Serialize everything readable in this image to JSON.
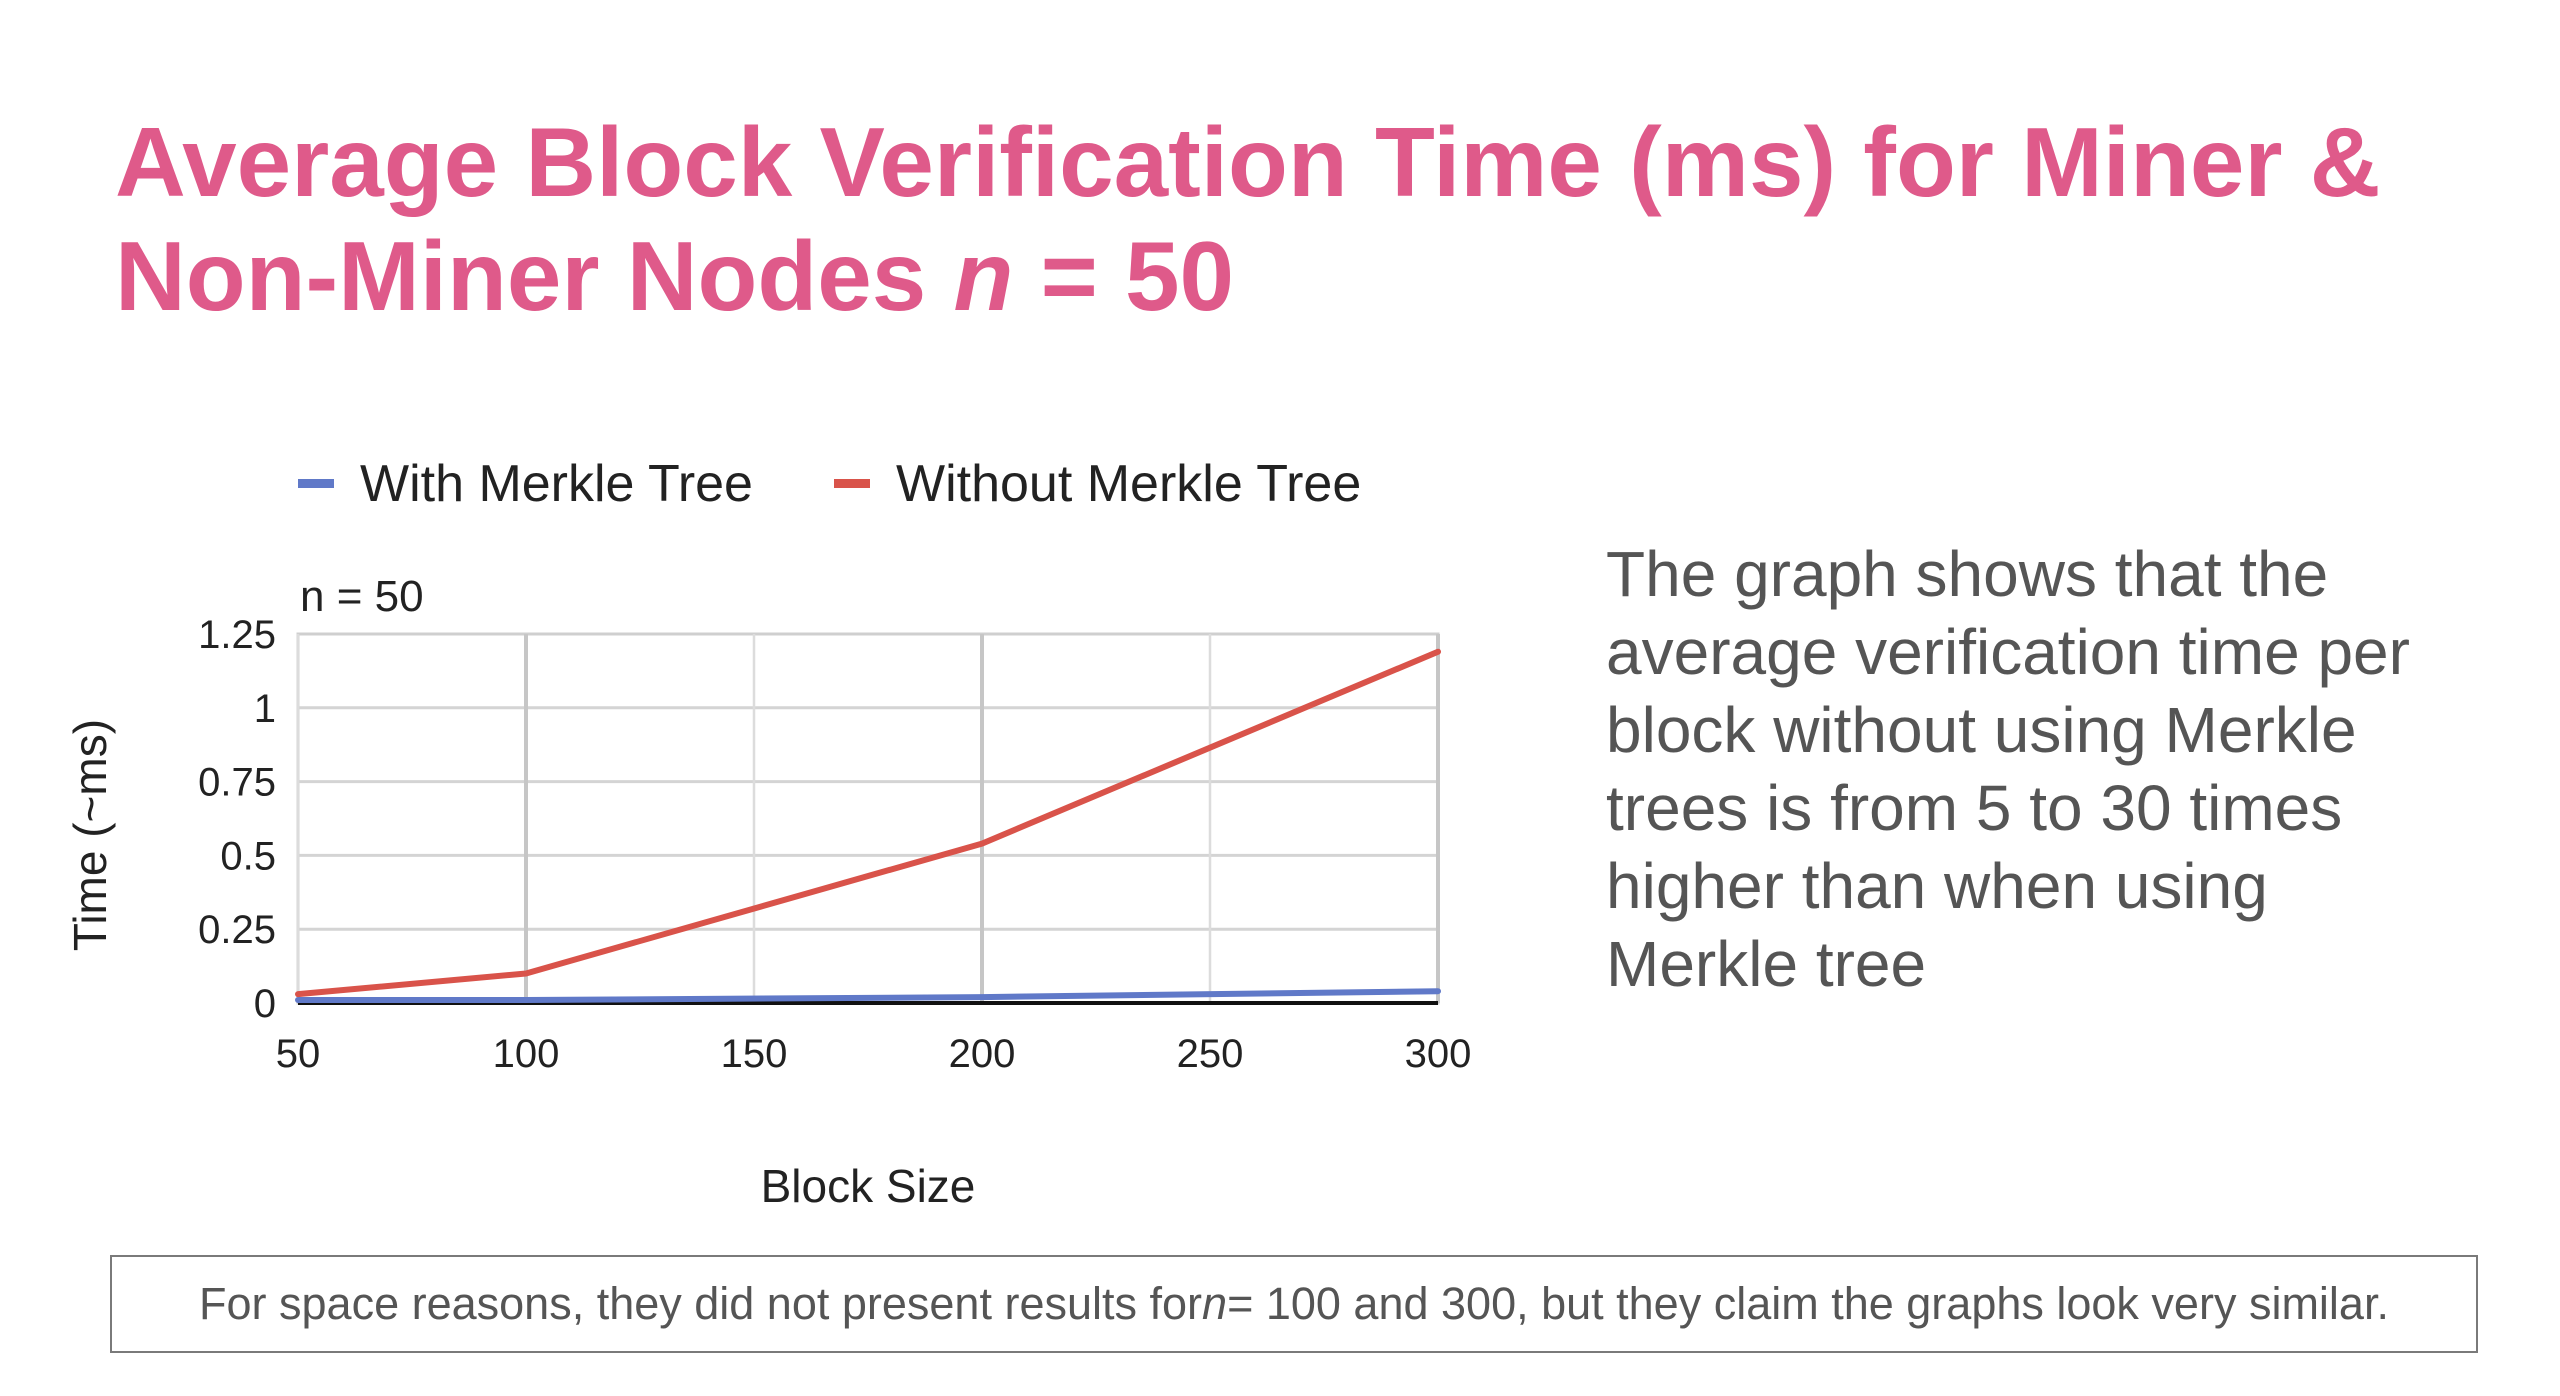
{
  "slide": {
    "title_main": "Average Block Verification Time (ms) for Miner & Non-Miner Nodes ",
    "title_var": "n",
    "title_rest": " = 50",
    "summary": "The graph shows that the average verification time per block without using Merkle trees is from 5 to 30 times higher than when using Merkle tree",
    "footnote_before": "For space reasons, they did not present results for ",
    "footnote_var": "n",
    "footnote_after": " = 100 and 300, but they claim the graphs look very similar."
  },
  "chart_data": {
    "type": "line",
    "title": "n = 50",
    "xlabel": "Block Size",
    "ylabel": "Time (~ms)",
    "x": [
      50,
      100,
      200,
      300
    ],
    "xticks": [
      50,
      100,
      150,
      200,
      250,
      300
    ],
    "yticks": [
      0,
      0.25,
      0.5,
      0.75,
      1,
      1.25
    ],
    "ytick_labels": [
      "0",
      "0.25",
      "0.5",
      "0.75",
      "1",
      "1.25"
    ],
    "xlim": [
      50,
      300
    ],
    "ylim": [
      0,
      1.25
    ],
    "grid": true,
    "legend_position": "top",
    "series": [
      {
        "name": "With Merkle Tree",
        "color": "#6079c8",
        "values": [
          0.01,
          0.01,
          0.02,
          0.04
        ]
      },
      {
        "name": "Without Merkle Tree",
        "color": "#d9534a",
        "values": [
          0.03,
          0.1,
          0.54,
          1.19
        ]
      }
    ]
  }
}
